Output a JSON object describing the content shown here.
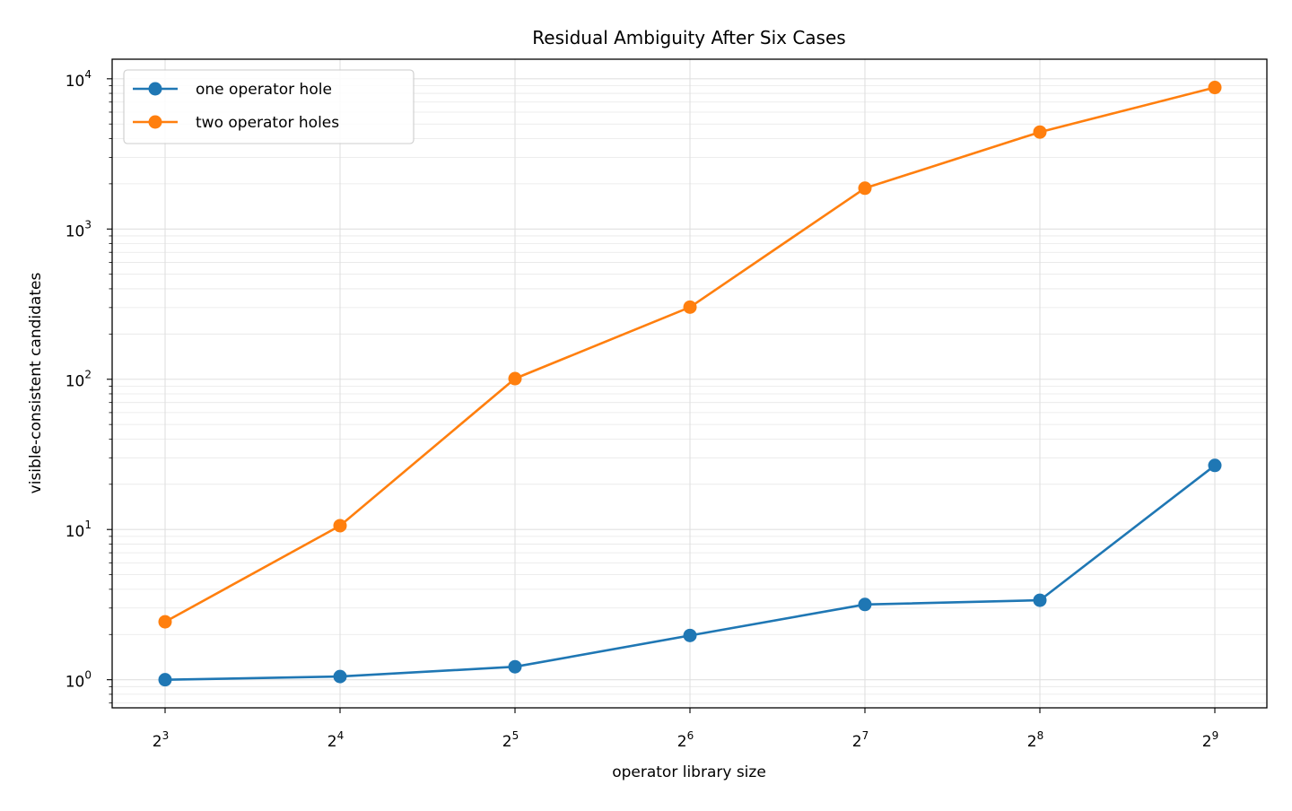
{
  "chart_data": {
    "type": "line",
    "title": "Residual Ambiguity After Six Cases",
    "xlabel": "operator library size",
    "ylabel": "visible-consistent candidates",
    "x_scale": "log2",
    "y_scale": "log10",
    "x": [
      8,
      16,
      32,
      64,
      128,
      256,
      512
    ],
    "x_tick_labels": [
      {
        "base": "2",
        "exp": "3"
      },
      {
        "base": "2",
        "exp": "4"
      },
      {
        "base": "2",
        "exp": "5"
      },
      {
        "base": "2",
        "exp": "6"
      },
      {
        "base": "2",
        "exp": "7"
      },
      {
        "base": "2",
        "exp": "8"
      },
      {
        "base": "2",
        "exp": "9"
      }
    ],
    "y_tick_labels": [
      {
        "value": 1,
        "base": "10",
        "exp": "0"
      },
      {
        "value": 10,
        "base": "10",
        "exp": "1"
      },
      {
        "value": 100,
        "base": "10",
        "exp": "2"
      },
      {
        "value": 1000,
        "base": "10",
        "exp": "3"
      },
      {
        "value": 10000,
        "base": "10",
        "exp": "4"
      }
    ],
    "ylim": [
      0.65,
      13500
    ],
    "grid": true,
    "legend_position": "top-left",
    "series": [
      {
        "name": "one operator hole",
        "color": "#1f77b4",
        "values": [
          1.0,
          1.05,
          1.22,
          1.97,
          3.17,
          3.38,
          26.7
        ]
      },
      {
        "name": "two operator holes",
        "color": "#ff7f0e",
        "values": [
          2.43,
          10.6,
          101,
          302,
          1870,
          4420,
          8750
        ]
      }
    ]
  }
}
